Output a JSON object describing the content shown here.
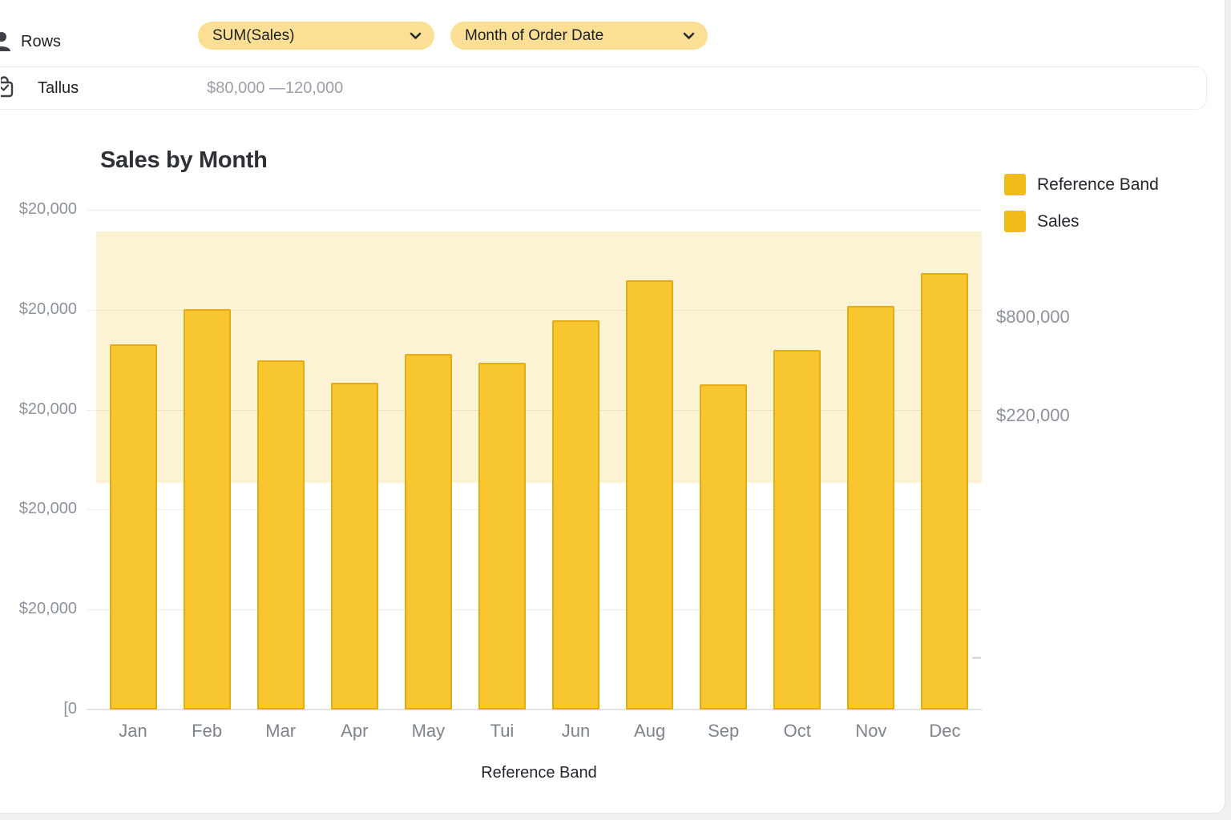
{
  "toolbar": {
    "rows_label": "Rows",
    "pills": [
      {
        "label": "SUM(Sales)"
      },
      {
        "label": "Month of Order Date"
      }
    ],
    "pill_color": "#fbdf94"
  },
  "filter_row": {
    "label": "Tallus",
    "value": "$80,000 —120,000"
  },
  "chart_data": {
    "type": "bar",
    "title": "Sales by Month",
    "categories": [
      "Jan",
      "Feb",
      "Mar",
      "Apr",
      "May",
      "Tui",
      "Jun",
      "Aug",
      "Sep",
      "Oct",
      "Nov",
      "Dec"
    ],
    "series": [
      {
        "name": "Sales",
        "values": [
          73000,
          80200,
          69900,
          65400,
          71200,
          69400,
          77900,
          85900,
          65100,
          72000,
          80800,
          87400
        ]
      }
    ],
    "xlabel": "Reference Band",
    "ylabel": "",
    "ylim": [
      0,
      99800
    ],
    "y_axis_tick_step": 20000,
    "y_left_labels": [
      "$20,000",
      "$20,000",
      "$20,000",
      "$20,000",
      "$20,000",
      "[0"
    ],
    "y_right_labels": [
      "$800,000",
      "$220,000"
    ],
    "legend": [
      {
        "label": "Reference Band"
      },
      {
        "label": "Sales"
      }
    ],
    "legend_position": "right",
    "grid": true,
    "reference_band": {
      "from": 45400,
      "to": 95700,
      "filter_label": "$80,000 —120,000"
    },
    "colors": {
      "bar_fill": "#f8c62e",
      "bar_border": "#e5ab14",
      "band_fill": "#fbf3d3",
      "legend_swatch": "#f1bc19",
      "grid_line": "#ececee",
      "axis_text": "#8d929b",
      "title_text": "#2d3035"
    }
  }
}
